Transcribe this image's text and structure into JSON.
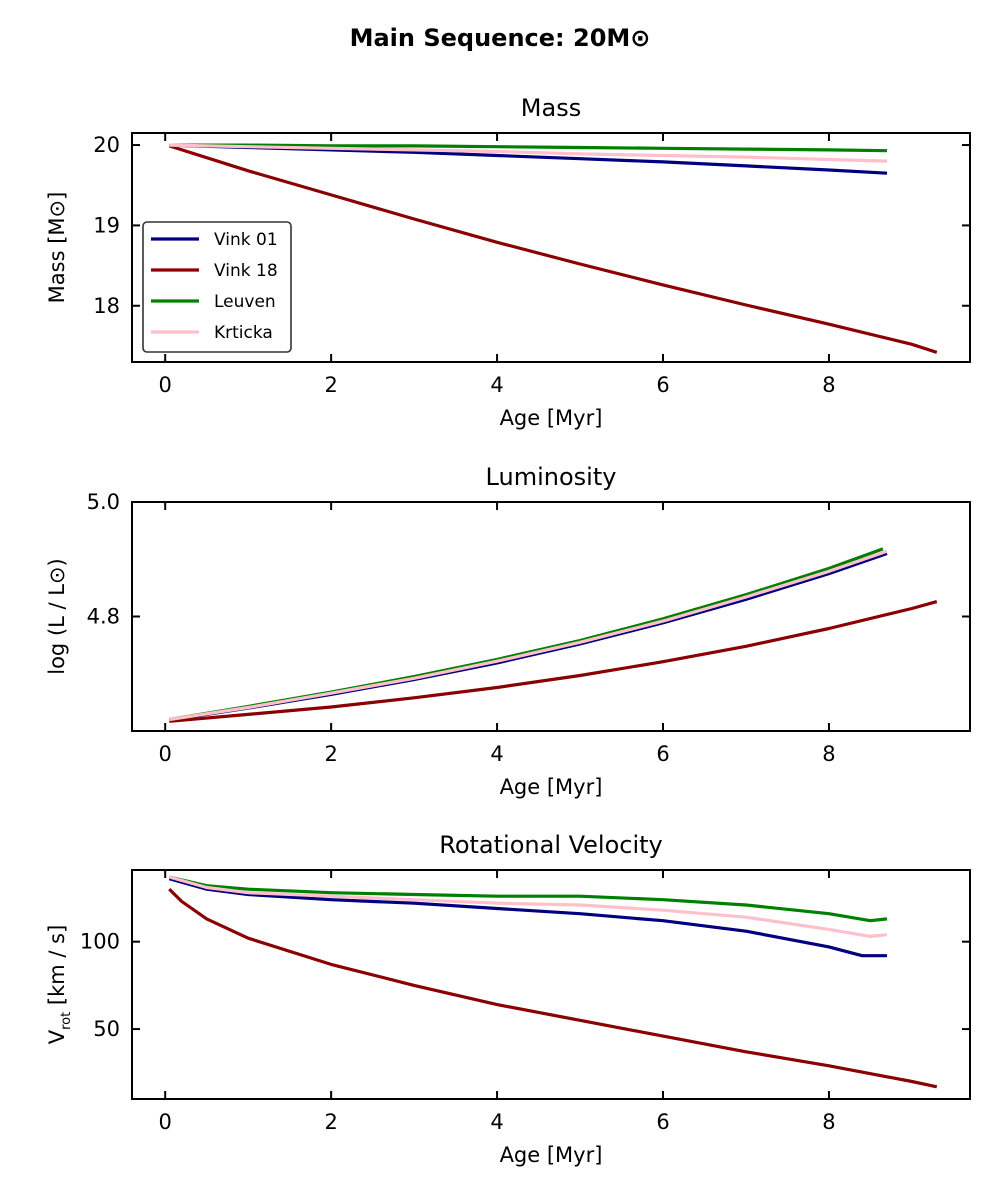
{
  "suptitle": "Main Sequence: 20M⊙",
  "colors": {
    "Vink 01": "#000080",
    "Vink 18": "#8B0000",
    "Leuven": "#008000",
    "Krticka": "#FFC0CB"
  },
  "legend": {
    "placement": "lower-left of first panel",
    "entries": [
      "Vink 01",
      "Vink 18",
      "Leuven",
      "Krticka"
    ]
  },
  "chart_data": [
    {
      "type": "line",
      "title": "Mass",
      "xlabel": "Age [Myr]",
      "ylabel": "Mass [M⊙]",
      "xlim": [
        -0.4,
        9.7
      ],
      "ylim": [
        17.3,
        20.15
      ],
      "xticks": [
        0,
        2,
        4,
        6,
        8
      ],
      "yticks": [
        18,
        19,
        20
      ],
      "ytick_labels": [
        "18",
        "19",
        "20"
      ],
      "series": [
        {
          "name": "Vink 01",
          "x": [
            0.05,
            1,
            2,
            3,
            4,
            5,
            6,
            7,
            8,
            8.7
          ],
          "y": [
            20.0,
            19.97,
            19.94,
            19.91,
            19.87,
            19.83,
            19.79,
            19.74,
            19.69,
            19.65
          ]
        },
        {
          "name": "Vink 18",
          "x": [
            0.05,
            1,
            2,
            3,
            4,
            5,
            6,
            7,
            8,
            9,
            9.3
          ],
          "y": [
            19.99,
            19.68,
            19.38,
            19.08,
            18.79,
            18.52,
            18.26,
            18.01,
            17.77,
            17.52,
            17.42
          ]
        },
        {
          "name": "Leuven",
          "x": [
            0.05,
            1,
            2,
            3,
            4,
            5,
            6,
            7,
            8,
            8.7
          ],
          "y": [
            20.0,
            20.0,
            19.99,
            19.99,
            19.98,
            19.97,
            19.96,
            19.95,
            19.94,
            19.93
          ]
        },
        {
          "name": "Krticka",
          "x": [
            0.05,
            1,
            2,
            3,
            4,
            5,
            6,
            7,
            8,
            8.7
          ],
          "y": [
            20.0,
            19.98,
            19.96,
            19.94,
            19.92,
            19.89,
            19.87,
            19.85,
            19.82,
            19.8
          ]
        }
      ]
    },
    {
      "type": "line",
      "title": "Luminosity",
      "xlabel": "Age [Myr]",
      "ylabel": "log (L / L⊙)",
      "xlim": [
        -0.4,
        9.7
      ],
      "ylim": [
        4.6,
        5.0
      ],
      "xticks": [
        0,
        2,
        4,
        6,
        8
      ],
      "yticks": [
        4.8,
        5.0
      ],
      "ytick_labels": [
        "4.8",
        "5.0"
      ],
      "series": [
        {
          "name": "Vink 01",
          "x": [
            0.05,
            1,
            2,
            3,
            4,
            5,
            6,
            7,
            8,
            8.7
          ],
          "y": [
            4.619,
            4.64,
            4.664,
            4.69,
            4.719,
            4.752,
            4.789,
            4.83,
            4.875,
            4.91
          ]
        },
        {
          "name": "Vink 18",
          "x": [
            0.05,
            1,
            2,
            3,
            4,
            5,
            6,
            7,
            8,
            9,
            9.3
          ],
          "y": [
            4.617,
            4.629,
            4.642,
            4.658,
            4.676,
            4.697,
            4.721,
            4.748,
            4.779,
            4.814,
            4.826
          ]
        },
        {
          "name": "Leuven",
          "x": [
            0.05,
            1,
            2,
            3,
            4,
            5,
            6,
            7,
            8,
            8.65
          ],
          "y": [
            4.62,
            4.643,
            4.668,
            4.695,
            4.725,
            4.758,
            4.796,
            4.838,
            4.884,
            4.918
          ]
        },
        {
          "name": "Krticka",
          "x": [
            0.05,
            1,
            2,
            3,
            4,
            5,
            6,
            7,
            8,
            8.7
          ],
          "y": [
            4.62,
            4.641,
            4.666,
            4.692,
            4.722,
            4.755,
            4.792,
            4.834,
            4.879,
            4.914
          ]
        }
      ]
    },
    {
      "type": "line",
      "title": "Rotational Velocity",
      "xlabel": "Age [Myr]",
      "ylabel": "V_rot [km / s]",
      "ylabel_main": "V",
      "ylabel_sub": "rot",
      "ylabel_rest": " [km / s]",
      "xlim": [
        -0.4,
        9.7
      ],
      "ylim": [
        10,
        141
      ],
      "xticks": [
        0,
        2,
        4,
        6,
        8
      ],
      "yticks": [
        50,
        100
      ],
      "ytick_labels": [
        "50",
        "100"
      ],
      "series": [
        {
          "name": "Vink 01",
          "x": [
            0.05,
            0.5,
            1,
            2,
            3,
            4,
            5,
            6,
            7,
            8,
            8.4,
            8.7
          ],
          "y": [
            136,
            130,
            127,
            124,
            122,
            119,
            116,
            112,
            106,
            97,
            92,
            92
          ]
        },
        {
          "name": "Vink 18",
          "x": [
            0.05,
            0.2,
            0.5,
            1,
            2,
            3,
            4,
            5,
            6,
            7,
            8,
            9,
            9.3
          ],
          "y": [
            130,
            123,
            113,
            102,
            87,
            75,
            64,
            55,
            46,
            37,
            29,
            20,
            17
          ]
        },
        {
          "name": "Leuven",
          "x": [
            0.05,
            0.5,
            1,
            2,
            3,
            4,
            5,
            6,
            7,
            8,
            8.5,
            8.7
          ],
          "y": [
            137,
            132,
            130,
            128,
            127,
            126,
            126,
            124,
            121,
            116,
            112,
            113
          ]
        },
        {
          "name": "Krticka",
          "x": [
            0.05,
            0.5,
            1,
            2,
            3,
            4,
            5,
            6,
            7,
            8,
            8.5,
            8.7
          ],
          "y": [
            137,
            131,
            128,
            126,
            124,
            122,
            121,
            118,
            114,
            107,
            103,
            104
          ]
        }
      ]
    }
  ]
}
